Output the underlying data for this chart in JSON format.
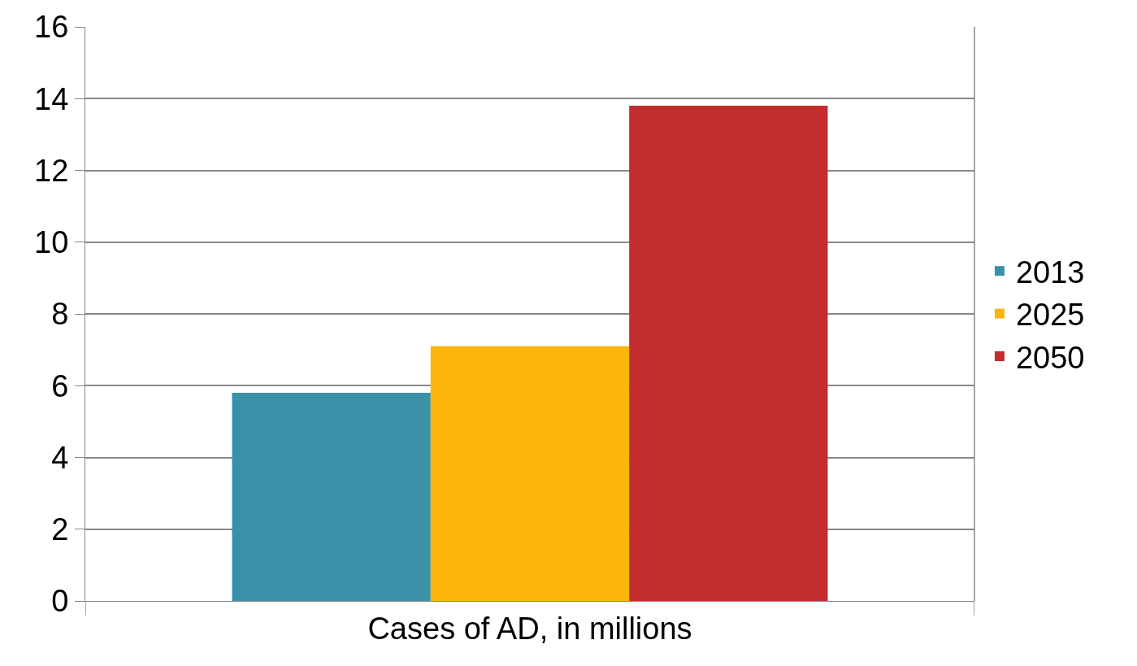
{
  "chart_data": {
    "type": "bar",
    "categories": [
      "Cases of AD, in millions"
    ],
    "series": [
      {
        "name": "2013",
        "color": "#3a91a8",
        "values": [
          5.8
        ]
      },
      {
        "name": "2025",
        "color": "#fbb50d",
        "values": [
          7.1
        ]
      },
      {
        "name": "2050",
        "color": "#c42d2e",
        "values": [
          13.8
        ]
      }
    ],
    "ylim": [
      0,
      16
    ],
    "yticks": [
      0,
      2,
      4,
      6,
      8,
      10,
      12,
      14,
      16
    ],
    "grid": "y",
    "legend": "right"
  }
}
